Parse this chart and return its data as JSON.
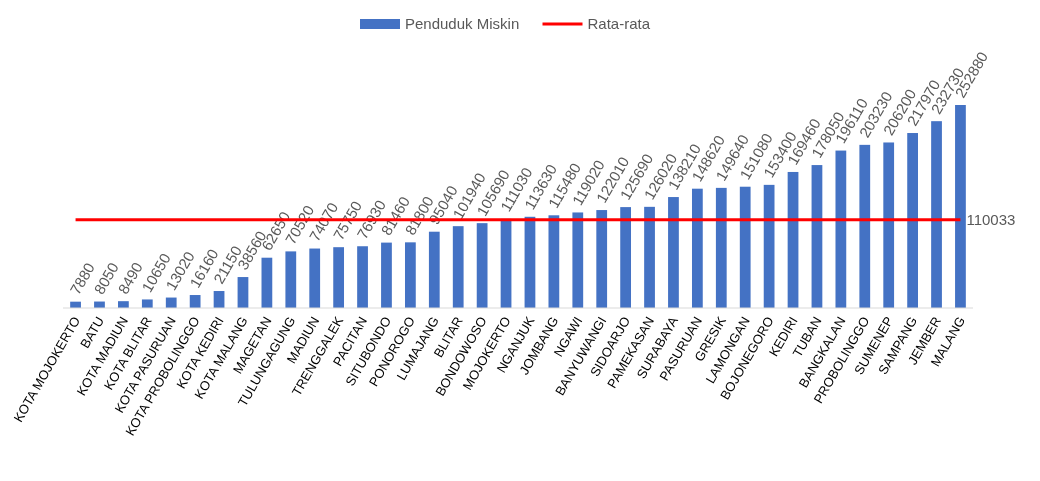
{
  "chart_data": {
    "type": "bar",
    "legend": "top",
    "data_labels": true,
    "categories": [
      "KOTA MOJOKERTO",
      "BATU",
      "KOTA MADIUN",
      "KOTA BLITAR",
      "KOTA PASURUAN",
      "KOTA PROBOLINGGO",
      "KOTA KEDIRI",
      "KOTA MALANG",
      "MAGETAN",
      "TULUNGAGUNG",
      "MADIUN",
      "TRENGGALEK",
      "PACITAN",
      "SITUBONDO",
      "PONOROGO",
      "LUMAJANG",
      "BLITAR",
      "BONDOWOSO",
      "MOJOKERTO",
      "NGANJUK",
      "JOMBANG",
      "NGAWI",
      "BANYUWANGI",
      "SIDOARJO",
      "PAMEKASAN",
      "SURABAYA",
      "PASURUAN",
      "GRESIK",
      "LAMONGAN",
      "BOJONEGORO",
      "KEDIRI",
      "TUBAN",
      "BANGKALAN",
      "PROBOLINGGO",
      "SUMENEP",
      "SAMPANG",
      "JEMBER",
      "MALANG"
    ],
    "series": [
      {
        "name": "Penduduk Miskin",
        "color": "#4472c4",
        "values": [
          7880,
          8050,
          8490,
          10650,
          13020,
          16160,
          21150,
          38560,
          62650,
          70520,
          74070,
          75750,
          76930,
          81460,
          81800,
          95040,
          101940,
          105690,
          111030,
          113630,
          115480,
          119020,
          122010,
          125690,
          126020,
          138210,
          148620,
          149640,
          151080,
          153400,
          169460,
          178050,
          196110,
          203230,
          206200,
          217970,
          232730,
          252880
        ]
      },
      {
        "name": "Rata-rata",
        "type": "line",
        "color": "#ff0000",
        "values": [
          110033,
          110033,
          110033,
          110033,
          110033,
          110033,
          110033,
          110033,
          110033,
          110033,
          110033,
          110033,
          110033,
          110033,
          110033,
          110033,
          110033,
          110033,
          110033,
          110033,
          110033,
          110033,
          110033,
          110033,
          110033,
          110033,
          110033,
          110033,
          110033,
          110033,
          110033,
          110033,
          110033,
          110033,
          110033,
          110033,
          110033,
          110033
        ],
        "value_labels": [
          null,
          null,
          null,
          null,
          null,
          null,
          null,
          null,
          null,
          null,
          null,
          null,
          null,
          null,
          null,
          null,
          null,
          null,
          null,
          null,
          null,
          null,
          null,
          null,
          null,
          null,
          null,
          null,
          null,
          null,
          null,
          null,
          null,
          null,
          null,
          null,
          null,
          "110033"
        ]
      }
    ]
  }
}
